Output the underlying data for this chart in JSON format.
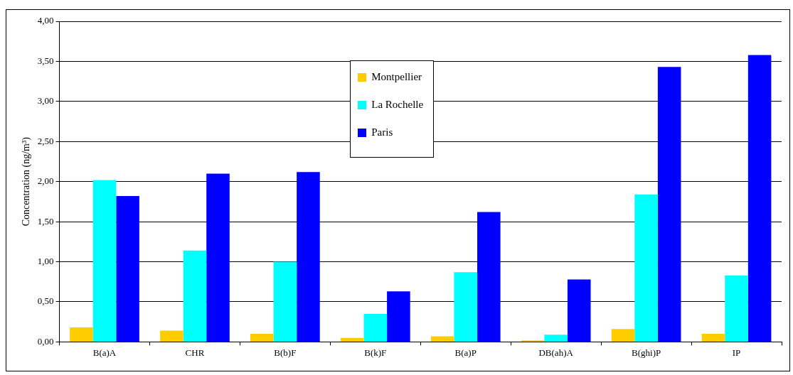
{
  "chart_data": {
    "type": "bar",
    "ylabel": "Concentration (ng/m³)",
    "categories": [
      "B(a)A",
      "CHR",
      "B(b)F",
      "B(k)F",
      "B(a)P",
      "DB(ah)A",
      "B(ghi)P",
      "IP"
    ],
    "series": [
      {
        "name": "Montpellier",
        "color": "#ffcc00",
        "values": [
          0.18,
          0.14,
          0.1,
          0.05,
          0.07,
          0.02,
          0.16,
          0.1
        ]
      },
      {
        "name": "La Rochelle",
        "color": "#00ffff",
        "values": [
          2.02,
          1.14,
          1.0,
          0.35,
          0.87,
          0.09,
          1.84,
          0.83
        ]
      },
      {
        "name": "Paris",
        "color": "#0000ff",
        "values": [
          1.82,
          2.1,
          2.12,
          0.63,
          1.62,
          0.78,
          3.43,
          3.58
        ]
      }
    ],
    "ylim": [
      0,
      4
    ],
    "yticks": [
      {
        "value": 0,
        "label": "0,00"
      },
      {
        "value": 0.5,
        "label": "0,50"
      },
      {
        "value": 1,
        "label": "1,00"
      },
      {
        "value": 1.5,
        "label": "1,50"
      },
      {
        "value": 2,
        "label": "2,00"
      },
      {
        "value": 2.5,
        "label": "2,50"
      },
      {
        "value": 3,
        "label": "3,00"
      },
      {
        "value": 3.5,
        "label": "3,50"
      },
      {
        "value": 4,
        "label": "4,00"
      }
    ],
    "grid": "y",
    "legend": "top"
  }
}
